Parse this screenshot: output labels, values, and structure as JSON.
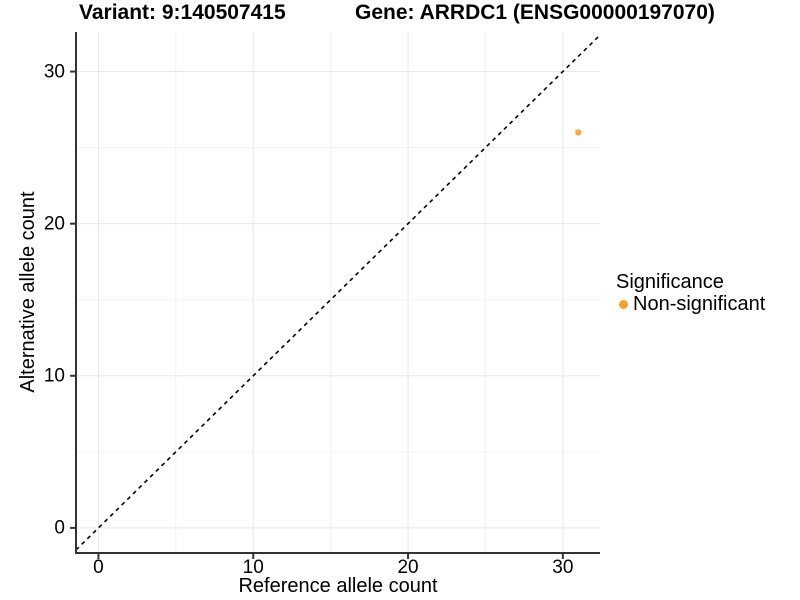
{
  "chart_data": {
    "type": "scatter",
    "titles": {
      "variant": "Variant: 9:140507415",
      "gene": "Gene: ARRDC1 (ENSG00000197070)"
    },
    "xlabel": "Reference allele count",
    "ylabel": "Alternative allele count",
    "x_ticks": [
      0,
      10,
      20,
      30
    ],
    "y_ticks": [
      0,
      10,
      20,
      30
    ],
    "x_minor_ticks": [
      5,
      15,
      25
    ],
    "y_minor_ticks": [
      5,
      15,
      25
    ],
    "xlim": [
      -1.45,
      32.4
    ],
    "ylim": [
      -1.65,
      32.6
    ],
    "grid": true,
    "legend_position": "right",
    "identity_line": {
      "slope": 1,
      "intercept": 0,
      "style": "dashed",
      "color": "#000000"
    },
    "points": [
      {
        "x": 31,
        "y": 26,
        "series": "Non-significant"
      }
    ],
    "legend": {
      "title": "Significance",
      "items": [
        {
          "label": "Non-significant",
          "color": "#F9A026"
        }
      ]
    },
    "colors": {
      "point": "#F9A026",
      "grid_major": "#e8e8e8",
      "grid_minor": "#f3f3f3",
      "axis": "#333333"
    }
  }
}
